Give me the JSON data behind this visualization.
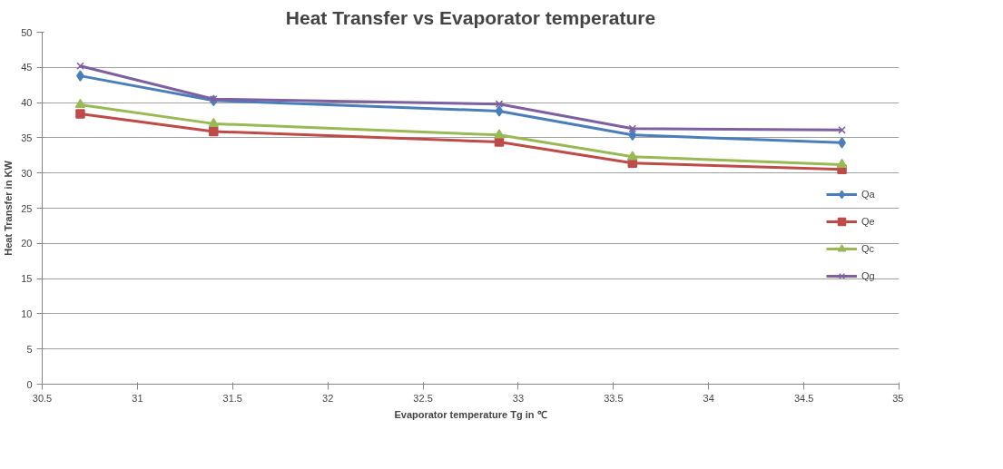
{
  "chart_data": {
    "type": "line",
    "title": "Heat Transfer vs Evaporator temperature",
    "xlabel": "Evaporator temperature Tg in ℃",
    "ylabel": "Heat Transfer in KW",
    "x": [
      30.7,
      31.4,
      32.9,
      33.6,
      34.7
    ],
    "series": [
      {
        "name": "Qa",
        "color": "#4a7ebb",
        "marker": "diamond",
        "values": [
          43.8,
          40.3,
          38.8,
          35.4,
          34.3
        ]
      },
      {
        "name": "Qe",
        "color": "#be4b48",
        "marker": "square",
        "values": [
          38.4,
          35.9,
          34.4,
          31.4,
          30.5
        ]
      },
      {
        "name": "Qc",
        "color": "#98b954",
        "marker": "triangle",
        "values": [
          39.7,
          37.0,
          35.4,
          32.3,
          31.2
        ]
      },
      {
        "name": "Qg",
        "color": "#7d60a0",
        "marker": "cross",
        "values": [
          45.2,
          40.5,
          39.8,
          36.3,
          36.1
        ]
      }
    ],
    "xlim": [
      30.5,
      35
    ],
    "xticks": [
      30.5,
      31,
      31.5,
      32,
      32.5,
      33,
      33.5,
      34,
      34.5,
      35
    ],
    "ylim": [
      0,
      50
    ],
    "yticks": [
      0,
      5,
      10,
      15,
      20,
      25,
      30,
      35,
      40,
      45,
      50
    ],
    "grid": "y",
    "legend": "right",
    "line_style": "solid"
  }
}
